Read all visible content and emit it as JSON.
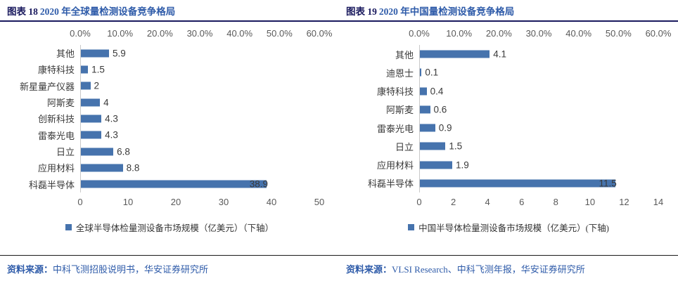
{
  "colors": {
    "bar": "#4673ad",
    "navy": "#1a1a5e",
    "blue": "#2e5ba9",
    "axis-text": "#595959",
    "label-text": "#3a3a3a",
    "axis-line": "#c9c9c9",
    "divider": "#1a1a1a"
  },
  "chart_data": [
    {
      "type": "bar",
      "orientation": "horizontal",
      "figure_label": "图表 18",
      "figure_title": "2020 年全球量检测设备竞争格局",
      "title": "图表 18 2020 年全球量检测设备竞争格局",
      "categories": [
        "其他",
        "康特科技",
        "新星量产仪器",
        "阿斯麦",
        "创新科技",
        "雷泰光电",
        "日立",
        "应用材料",
        "科磊半导体"
      ],
      "values": [
        5.9,
        1.5,
        2,
        4,
        4.3,
        4.3,
        6.8,
        8.8,
        38.9
      ],
      "value_labels": [
        "5.9",
        "1.5",
        "2",
        "4",
        "4.3",
        "4.3",
        "6.8",
        "8.8",
        "38.9"
      ],
      "top_axis": {
        "ticks": [
          "0.0%",
          "10.0%",
          "20.0%",
          "30.0%",
          "40.0%",
          "50.0%",
          "60.0%"
        ],
        "min": 0,
        "max": 60,
        "unit": "%"
      },
      "bottom_axis": {
        "ticks": [
          "0",
          "10",
          "20",
          "30",
          "40",
          "50"
        ],
        "min": 0,
        "max": 50,
        "unit": "亿美元"
      },
      "grid": false,
      "legend": "全球半导体检量测设备市场规模（亿美元）（下轴）",
      "legend_position": "bottom",
      "source_label": "资料来源：",
      "source_text": "中科飞测招股说明书，华安证券研究所"
    },
    {
      "type": "bar",
      "orientation": "horizontal",
      "figure_label": "图表 19",
      "figure_title": "2020 年中国量检测设备竞争格局",
      "title": "图表 19 2020 年中国量检测设备竞争格局",
      "categories": [
        "其他",
        "迪恩士",
        "康特科技",
        "阿斯麦",
        "雷泰光电",
        "日立",
        "应用材料",
        "科磊半导体"
      ],
      "values": [
        4.1,
        0.1,
        0.4,
        0.6,
        0.9,
        1.5,
        1.9,
        11.5
      ],
      "value_labels": [
        "4.1",
        "0.1",
        "0.4",
        "0.6",
        "0.9",
        "1.5",
        "1.9",
        "11.5"
      ],
      "top_axis": {
        "ticks": [
          "0.0%",
          "10.0%",
          "20.0%",
          "30.0%",
          "40.0%",
          "50.0%",
          "60.0%"
        ],
        "min": 0,
        "max": 60,
        "unit": "%"
      },
      "bottom_axis": {
        "ticks": [
          "0",
          "2",
          "4",
          "6",
          "8",
          "10",
          "12",
          "14"
        ],
        "min": 0,
        "max": 14,
        "unit": "亿美元"
      },
      "grid": false,
      "legend": "中国半导体检量测设备市场规模（亿美元）(下轴)",
      "legend_position": "bottom",
      "source_label": "资料来源：",
      "source_text": "VLSI Research、中科飞测年报，华安证券研究所"
    }
  ]
}
